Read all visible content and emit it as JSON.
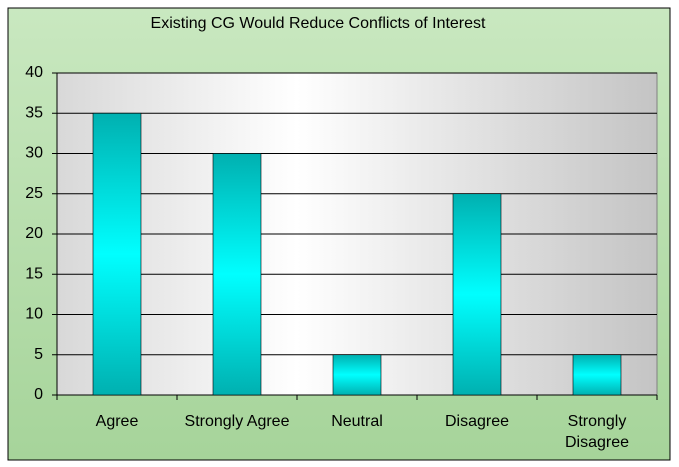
{
  "chart_data": {
    "type": "bar",
    "title": "Existing CG Would Reduce Conflicts of Interest",
    "categories": [
      "Agree",
      "Strongly Agree",
      "Neutral",
      "Disagree",
      "Strongly Disagree"
    ],
    "values": [
      35,
      30,
      5,
      25,
      5
    ],
    "color": "#00ffff",
    "ylim": [
      0,
      40
    ],
    "yticks": [
      0,
      5,
      10,
      15,
      20,
      25,
      30,
      35,
      40
    ],
    "grid": true
  }
}
